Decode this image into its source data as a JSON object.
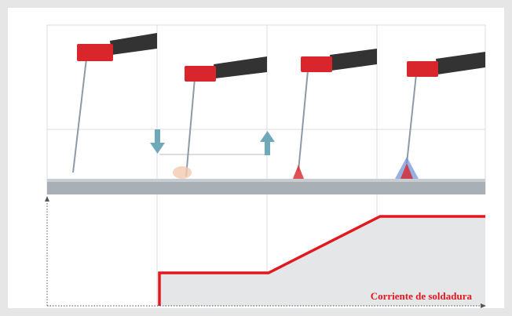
{
  "label": "Corriente de soldadura"
}
